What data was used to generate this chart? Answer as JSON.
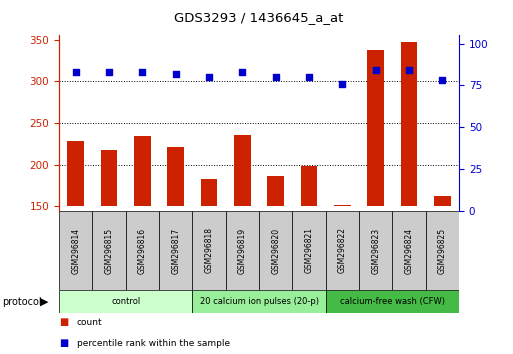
{
  "title": "GDS3293 / 1436645_a_at",
  "samples": [
    "GSM296814",
    "GSM296815",
    "GSM296816",
    "GSM296817",
    "GSM296818",
    "GSM296819",
    "GSM296820",
    "GSM296821",
    "GSM296822",
    "GSM296823",
    "GSM296824",
    "GSM296825"
  ],
  "counts": [
    229,
    218,
    235,
    221,
    183,
    236,
    186,
    199,
    152,
    338,
    347,
    162
  ],
  "percentile_ranks": [
    83,
    83,
    83,
    82,
    80,
    83,
    80,
    80,
    76,
    84,
    84,
    78
  ],
  "ylim_left": [
    145,
    355
  ],
  "ylim_right": [
    0,
    105
  ],
  "yticks_left": [
    150,
    200,
    250,
    300,
    350
  ],
  "yticks_right": [
    0,
    25,
    50,
    75,
    100
  ],
  "bar_color": "#cc2200",
  "dot_color": "#0000cc",
  "protocol_groups": [
    {
      "label": "control",
      "start": 0,
      "end": 3,
      "color": "#ccffcc"
    },
    {
      "label": "20 calcium ion pulses (20-p)",
      "start": 4,
      "end": 7,
      "color": "#99ee99"
    },
    {
      "label": "calcium-free wash (CFW)",
      "start": 8,
      "end": 11,
      "color": "#44bb44"
    }
  ],
  "left_axis_color": "#cc2200",
  "right_axis_color": "#0000cc",
  "legend_items": [
    {
      "label": "count",
      "color": "#cc2200"
    },
    {
      "label": "percentile rank within the sample",
      "color": "#0000cc"
    }
  ],
  "grid_vals": [
    200,
    250,
    300
  ],
  "baseline": 150
}
